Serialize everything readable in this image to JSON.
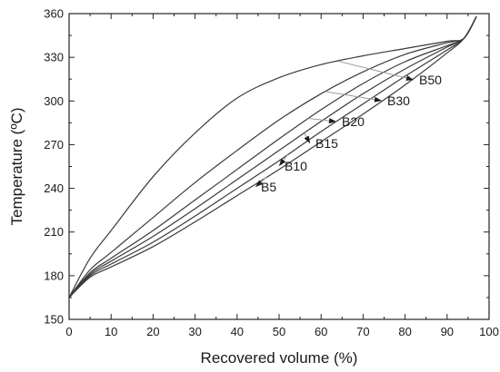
{
  "chart_data": {
    "type": "line",
    "title": "",
    "xlabel": "Recovered volume (%)",
    "ylabel": "Temperature (ºC)",
    "xlim": [
      0,
      100
    ],
    "ylim": [
      150,
      360
    ],
    "xticks": [
      "0",
      "10",
      "20",
      "30",
      "40",
      "50",
      "60",
      "70",
      "80",
      "90",
      "100"
    ],
    "yticks": [
      "150",
      "180",
      "210",
      "240",
      "270",
      "300",
      "330",
      "360"
    ],
    "grid": false,
    "line_color": "#3a3a3a",
    "series": [
      {
        "name": "B5",
        "x": [
          0,
          5,
          10,
          20,
          30,
          40,
          50,
          60,
          70,
          80,
          90,
          94,
          97
        ],
        "y": [
          165,
          179,
          186,
          200,
          217,
          235,
          253,
          272,
          291,
          311,
          333,
          343,
          358
        ]
      },
      {
        "name": "B10",
        "x": [
          0,
          5,
          10,
          20,
          30,
          40,
          50,
          60,
          70,
          80,
          90,
          94,
          97
        ],
        "y": [
          165,
          180,
          188,
          203,
          221,
          240,
          259,
          279,
          298,
          317,
          335,
          343,
          358
        ]
      },
      {
        "name": "B15",
        "x": [
          0,
          5,
          10,
          20,
          30,
          40,
          50,
          60,
          70,
          80,
          90,
          94,
          97
        ],
        "y": [
          165,
          181,
          190,
          207,
          226,
          246,
          266,
          286,
          305,
          322,
          337,
          343,
          358
        ]
      },
      {
        "name": "B20",
        "x": [
          0,
          5,
          10,
          20,
          30,
          40,
          50,
          60,
          70,
          80,
          90,
          94,
          97
        ],
        "y": [
          165,
          182,
          192,
          211,
          232,
          253,
          274,
          294,
          312,
          327,
          338,
          343,
          358
        ]
      },
      {
        "name": "B30",
        "x": [
          0,
          5,
          10,
          20,
          30,
          40,
          50,
          60,
          70,
          80,
          90,
          94,
          97
        ],
        "y": [
          165,
          184,
          196,
          220,
          244,
          266,
          287,
          305,
          320,
          332,
          340,
          343,
          358
        ]
      },
      {
        "name": "B50",
        "x": [
          0,
          5,
          10,
          20,
          30,
          40,
          50,
          60,
          70,
          80,
          90,
          94,
          97
        ],
        "y": [
          165,
          192,
          211,
          248,
          278,
          302,
          316,
          325,
          331,
          336,
          341,
          343,
          358
        ]
      }
    ],
    "annotations": [
      {
        "series": "B5",
        "label": "B5"
      },
      {
        "series": "B10",
        "label": "B10"
      },
      {
        "series": "B15",
        "label": "B15"
      },
      {
        "series": "B20",
        "label": "B20"
      },
      {
        "series": "B30",
        "label": "B30"
      },
      {
        "series": "B50",
        "label": "B50"
      }
    ]
  }
}
